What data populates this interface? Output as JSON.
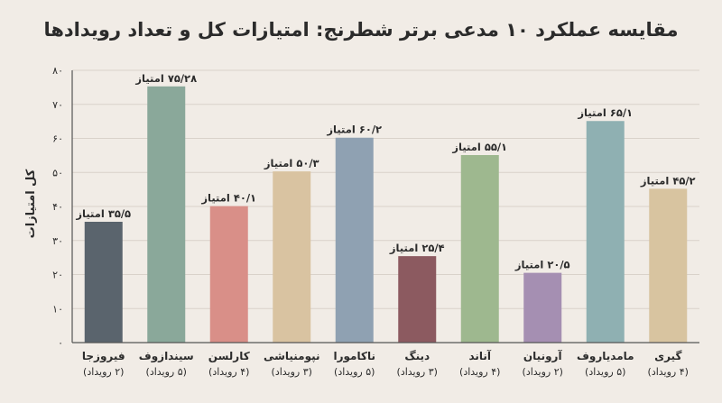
{
  "chart_data": {
    "type": "bar",
    "title": "مقایسه عملکرد ۱۰ مدعی برتر شطرنج: امتیازات کل و تعداد رویدادها",
    "ylabel": "کل امتیازات",
    "xlabel": "",
    "ylim": [
      0,
      80
    ],
    "yticks": [
      "۰",
      "۱۰",
      "۲۰",
      "۳۰",
      "۴۰",
      "۵۰",
      "۶۰",
      "۷۰",
      "۸۰"
    ],
    "grid": true,
    "categories": [
      {
        "name": "فیروزجا",
        "events": "(۲ رویداد)"
      },
      {
        "name": "سیندازوف",
        "events": "(۵ رویداد)"
      },
      {
        "name": "کارلسن",
        "events": "(۴ رویداد)"
      },
      {
        "name": "نپومنیاشی",
        "events": "(۳ رویداد)"
      },
      {
        "name": "ناکامورا",
        "events": "(۵ رویداد)"
      },
      {
        "name": "دینگ",
        "events": "(۳ رویداد)"
      },
      {
        "name": "آناند",
        "events": "(۴ رویداد)"
      },
      {
        "name": "آرونیان",
        "events": "(۲ رویداد)"
      },
      {
        "name": "مامدیاروف",
        "events": "(۵ رویداد)"
      },
      {
        "name": "گیری",
        "events": "(۴ رویداد)"
      }
    ],
    "values": [
      35.5,
      75.28,
      40.1,
      50.3,
      60.2,
      25.4,
      55.1,
      20.5,
      65.1,
      45.2
    ],
    "value_labels": [
      "۳۵/۵ امتیاز",
      "۷۵/۲۸ امتیاز",
      "۴۰/۱ امتیاز",
      "۵۰/۳ امتیاز",
      "۶۰/۲ امتیاز",
      "۲۵/۴ امتیاز",
      "۵۵/۱ امتیاز",
      "۲۰/۵ امتیاز",
      "۶۵/۱ امتیاز",
      "۴۵/۲ امتیاز"
    ],
    "colors": [
      "#5a646d",
      "#8aa89a",
      "#d98f88",
      "#d9c3a1",
      "#8fa1b2",
      "#8c5a60",
      "#9eb88f",
      "#a58fb2",
      "#8fb0b2",
      "#d8c4a0"
    ]
  }
}
